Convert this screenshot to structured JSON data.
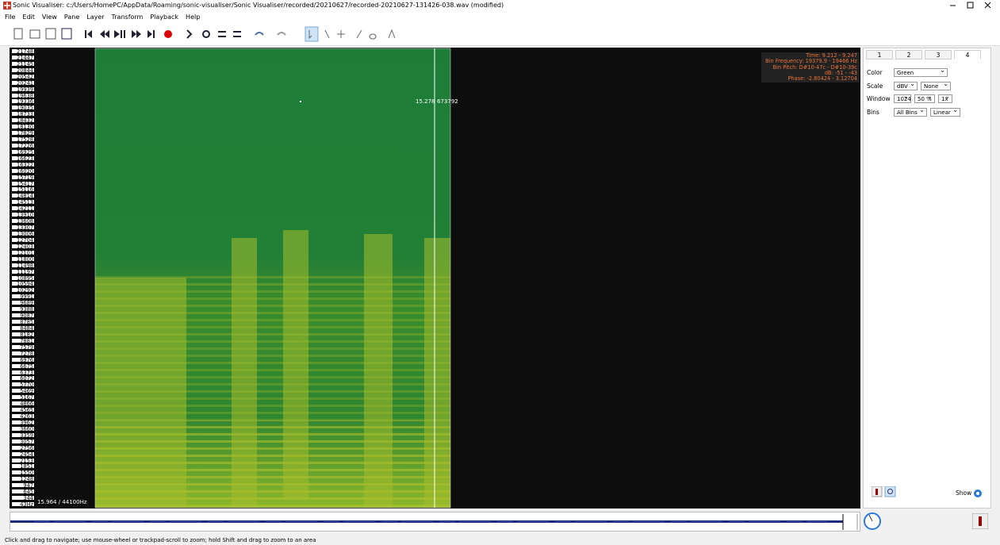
{
  "window": {
    "title": "Sonic Visualiser: c:/Users/HomePC/AppData/Roaming/sonic-visualiser/Sonic Visualiser/recorded/20210627/recorded-20210627-131426-038.wav (modified)"
  },
  "menu": [
    "File",
    "Edit",
    "View",
    "Pane",
    "Layer",
    "Transform",
    "Playback",
    "Help"
  ],
  "pane": {
    "cursor_time": "15.278",
    "cursor_frame": "673792",
    "position": "15.964 / 44100Hz",
    "frequency_labels": [
      "21748",
      "21447",
      "21145",
      "20844",
      "20542",
      "20241",
      "19939",
      "19638",
      "19336",
      "19035",
      "18733",
      "18432",
      "18130",
      "17829",
      "17528",
      "17226",
      "16925",
      "16623",
      "16322",
      "16020",
      "15719",
      "15417",
      "15116",
      "14814",
      "14513",
      "14211",
      "13910",
      "13608",
      "13307",
      "13006",
      "12704",
      "12403",
      "12101",
      "11800",
      "11498",
      "11197",
      "10895",
      "10594",
      "10292",
      "9991",
      "9689",
      "9388",
      "9087",
      "8785",
      "8484",
      "8182",
      "7881",
      "7579",
      "7278",
      "6976",
      "6675",
      "6373",
      "6072",
      "5770",
      "5469",
      "5167",
      "4866",
      "4565",
      "4263",
      "3962",
      "3660",
      "3359",
      "3057",
      "2756",
      "2454",
      "2153",
      "1851",
      "1550",
      "1248",
      "947",
      "645",
      "344",
      "43Hz"
    ],
    "info": [
      "Time: 9.212 - 9.247",
      "Bin Frequency: 19379.9 - 19466 Hz",
      "Bin Pitch: D#10-47c - D#10-39c",
      "dB: -51 - -43",
      "Phase: -2.80424 - 3.12704"
    ]
  },
  "properties": {
    "tabs": [
      "1",
      "2",
      "3",
      "4"
    ],
    "rows": [
      {
        "label": "Color",
        "values": [
          "Green"
        ]
      },
      {
        "label": "Scale",
        "values": [
          "dBV",
          "None"
        ]
      },
      {
        "label": "Window",
        "values": [
          "1024",
          "50 %",
          "1x"
        ]
      },
      {
        "label": "Bins",
        "values": [
          "All Bins",
          "Linear"
        ]
      }
    ],
    "show": "Show"
  },
  "status": "Click and drag to navigate; use mouse-wheel or trackpad-scroll to zoom; hold Shift and drag to zoom to an area"
}
